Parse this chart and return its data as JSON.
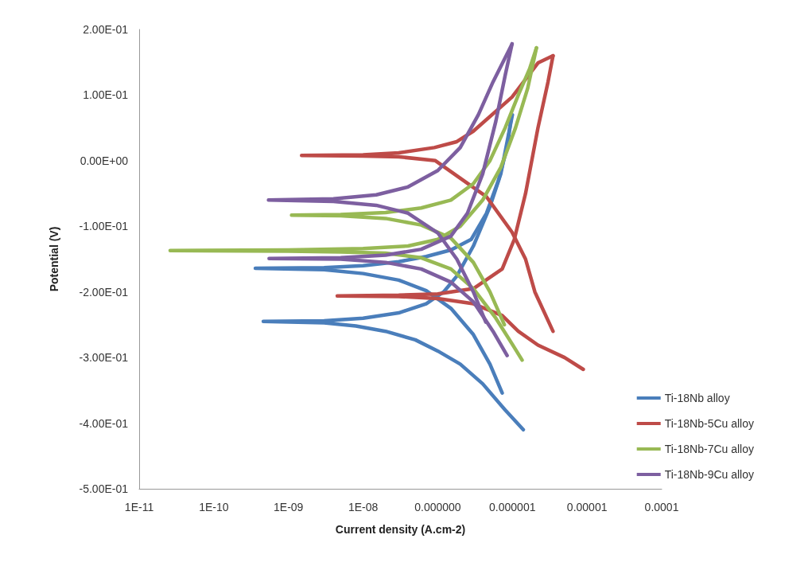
{
  "chart_data": {
    "type": "line",
    "xlabel": "Current density (A.cm-2)",
    "ylabel": "Potential (V)",
    "log": "x",
    "grid": false,
    "legend": "right",
    "marker": "none",
    "line_style": "solid",
    "xlim": [
      1e-11,
      0.0001
    ],
    "xticks": [
      {
        "value": 1e-11,
        "label": "1E-11"
      },
      {
        "value": 1e-10,
        "label": "1E-10"
      },
      {
        "value": 1e-09,
        "label": "1E-09"
      },
      {
        "value": 1e-08,
        "label": "1E-08"
      },
      {
        "value": 1e-07,
        "label": "0.000000"
      },
      {
        "value": 1e-06,
        "label": "0.000001"
      },
      {
        "value": 1e-05,
        "label": "0.00001"
      },
      {
        "value": 0.0001,
        "label": "0.0001"
      }
    ],
    "ylim": [
      -0.5,
      0.2
    ],
    "yticks": [
      {
        "value": 0.2,
        "label": "2.00E-01"
      },
      {
        "value": 0.1,
        "label": "1.00E-01"
      },
      {
        "value": 0,
        "label": "0.00E+00"
      },
      {
        "value": -0.1,
        "label": "-1.00E-01"
      },
      {
        "value": -0.2,
        "label": "-2.00E-01"
      },
      {
        "value": -0.3,
        "label": "-3.00E-01"
      },
      {
        "value": -0.4,
        "label": "-4.00E-01"
      },
      {
        "value": -0.5,
        "label": "-5.00E-01"
      }
    ],
    "series": [
      {
        "name": "Ti-18Nb alloy",
        "color": "#4a7ebb",
        "x": [
          1.4e-06,
          8e-07,
          4e-07,
          2e-07,
          1e-07,
          5e-08,
          2e-08,
          8e-09,
          3e-09,
          4.6e-10,
          3e-09,
          1e-08,
          3e-08,
          7e-08,
          1.2e-07,
          1.8e-07,
          3e-07,
          5e-07,
          7e-07,
          1e-06
        ],
        "values": [
          -0.41,
          -0.38,
          -0.34,
          -0.31,
          -0.29,
          -0.273,
          -0.26,
          -0.252,
          -0.247,
          -0.245,
          -0.244,
          -0.24,
          -0.232,
          -0.218,
          -0.2,
          -0.176,
          -0.13,
          -0.07,
          -0.02,
          0.07
        ]
      },
      {
        "color": "#4a7ebb",
        "x": [
          7.3e-07,
          5e-07,
          3e-07,
          1.5e-07,
          7e-08,
          3e-08,
          1e-08,
          3e-09,
          3.6e-10,
          3e-09,
          1e-08,
          3e-08,
          7e-08,
          1.5e-07,
          2.8e-07,
          4.5e-07,
          6.5e-07,
          8.5e-07,
          9.5e-07
        ],
        "values": [
          -0.354,
          -0.31,
          -0.265,
          -0.225,
          -0.198,
          -0.182,
          -0.172,
          -0.166,
          -0.164,
          -0.163,
          -0.16,
          -0.154,
          -0.146,
          -0.136,
          -0.12,
          -0.08,
          -0.03,
          0.02,
          0.06
        ]
      },
      {
        "name": "Ti-18Nb-5Cu alloy",
        "color": "#be4b48",
        "x": [
          3.5e-06,
          2e-06,
          1.5e-06,
          9.9e-07,
          4.5e-07,
          9.3e-08,
          3e-08,
          1e-08,
          1.5e-09,
          1e-08,
          3e-08,
          9e-08,
          1.8e-07,
          3e-07,
          9.9e-07,
          2.2e-06,
          3.5e-06
        ],
        "values": [
          -0.26,
          -0.2,
          -0.15,
          -0.109,
          -0.055,
          0,
          0.006,
          0.007,
          0.008,
          0.009,
          0.012,
          0.02,
          0.029,
          0.045,
          0.097,
          0.149,
          0.16
        ]
      },
      {
        "color": "#be4b48",
        "x": [
          8.9e-06,
          5e-06,
          2.2e-06,
          1.2e-06,
          7.3e-07,
          3e-07,
          1e-07,
          3e-08,
          4.5e-09,
          3e-08,
          1e-07,
          3e-07,
          7.3e-07,
          1.06e-06,
          1.5e-06,
          2.2e-06,
          3e-06,
          3.5e-06
        ],
        "values": [
          -0.318,
          -0.3,
          -0.281,
          -0.26,
          -0.236,
          -0.218,
          -0.21,
          -0.207,
          -0.206,
          -0.205,
          -0.203,
          -0.195,
          -0.165,
          -0.12,
          -0.05,
          0.05,
          0.12,
          0.16
        ]
      },
      {
        "name": "Ti-18Nb-7Cu alloy",
        "color": "#98b954",
        "x": [
          1.35e-06,
          1e-06,
          6e-07,
          3e-07,
          1.5e-07,
          6e-08,
          2e-08,
          5e-09,
          1e-09,
          2.6e-11,
          1e-09,
          1e-08,
          4e-08,
          1e-07,
          2e-07,
          4e-07,
          7e-07,
          1.1e-06,
          1.6e-06,
          2.1e-06
        ],
        "values": [
          -0.304,
          -0.28,
          -0.24,
          -0.195,
          -0.165,
          -0.148,
          -0.141,
          -0.139,
          -0.138,
          -0.137,
          -0.136,
          -0.134,
          -0.13,
          -0.12,
          -0.1,
          -0.06,
          -0.01,
          0.05,
          0.11,
          0.172
        ]
      },
      {
        "color": "#98b954",
        "x": [
          7.8e-07,
          5e-07,
          3e-07,
          1.5e-07,
          6e-08,
          2e-08,
          5e-09,
          1.1e-09,
          5e-09,
          2e-08,
          6e-08,
          1.5e-07,
          3e-07,
          5e-07,
          8e-07,
          1.2e-06,
          1.7e-06,
          2.1e-06
        ],
        "values": [
          -0.25,
          -0.2,
          -0.155,
          -0.118,
          -0.098,
          -0.088,
          -0.084,
          -0.083,
          -0.082,
          -0.079,
          -0.072,
          -0.06,
          -0.035,
          0,
          0.05,
          0.1,
          0.14,
          0.172
        ]
      },
      {
        "name": "Ti-18Nb-9Cu alloy",
        "color": "#7d5fa0",
        "x": [
          4.4e-07,
          3e-07,
          1.8e-07,
          1e-07,
          4e-08,
          1.5e-08,
          4e-09,
          5.4e-10,
          4e-09,
          1.5e-08,
          4e-08,
          1e-07,
          2e-07,
          3.5e-07,
          5.5e-07,
          9.9e-07
        ],
        "values": [
          -0.246,
          -0.2,
          -0.15,
          -0.11,
          -0.08,
          -0.068,
          -0.062,
          -0.06,
          -0.058,
          -0.052,
          -0.04,
          -0.015,
          0.02,
          0.07,
          0.12,
          0.178
        ]
      },
      {
        "color": "#7d5fa0",
        "x": [
          8.5e-07,
          5.5e-07,
          3e-07,
          1.5e-07,
          6e-08,
          2e-08,
          5e-09,
          5.5e-10,
          5e-09,
          2e-08,
          6e-08,
          1.5e-07,
          2.5e-07,
          4e-07,
          6e-07,
          8e-07,
          9.9e-07
        ],
        "values": [
          -0.297,
          -0.26,
          -0.215,
          -0.185,
          -0.165,
          -0.155,
          -0.15,
          -0.149,
          -0.148,
          -0.144,
          -0.135,
          -0.115,
          -0.08,
          -0.02,
          0.06,
          0.13,
          0.178
        ]
      }
    ]
  }
}
